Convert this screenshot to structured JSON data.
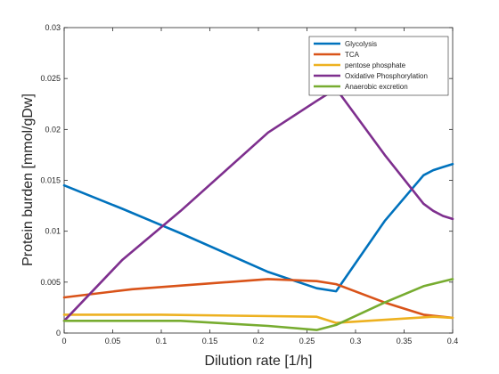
{
  "chart_data": {
    "type": "line",
    "title": "",
    "xlabel": "Dilution rate [1/h]",
    "ylabel": "Protein burden [mmol/gDw]",
    "xlim": [
      0,
      0.4
    ],
    "ylim": [
      0,
      0.03
    ],
    "xticks": [
      0,
      0.05,
      0.1,
      0.15,
      0.2,
      0.25,
      0.3,
      0.35,
      0.4
    ],
    "xtick_labels": [
      "0",
      "0.05",
      "0.1",
      "0.15",
      "0.2",
      "0.25",
      "0.3",
      "0.35",
      "0.4"
    ],
    "yticks": [
      0,
      0.005,
      0.01,
      0.015,
      0.02,
      0.025,
      0.03
    ],
    "ytick_labels": [
      "0",
      "0.005",
      "0.01",
      "0.015",
      "0.02",
      "0.025",
      "0.03"
    ],
    "grid": false,
    "legend_position": "top-right",
    "series": [
      {
        "name": "Glycolysis",
        "color": "#0072BD",
        "x": [
          0,
          0.06,
          0.12,
          0.21,
          0.26,
          0.28,
          0.33,
          0.37,
          0.38,
          0.39,
          0.4
        ],
        "y": [
          0.0145,
          0.0122,
          0.0098,
          0.006,
          0.0044,
          0.0041,
          0.011,
          0.0155,
          0.016,
          0.0163,
          0.0166
        ]
      },
      {
        "name": "TCA",
        "color": "#D95319",
        "x": [
          0,
          0.07,
          0.21,
          0.26,
          0.28,
          0.33,
          0.37,
          0.4
        ],
        "y": [
          0.0035,
          0.0043,
          0.0053,
          0.0051,
          0.0048,
          0.003,
          0.0018,
          0.0015
        ]
      },
      {
        "name": "pentose phosphate",
        "color": "#EDB120",
        "x": [
          0,
          0.1,
          0.26,
          0.28,
          0.38,
          0.4
        ],
        "y": [
          0.0018,
          0.0018,
          0.0016,
          0.001,
          0.0016,
          0.0015
        ]
      },
      {
        "name": "Oxidative Phosphorylation",
        "color": "#7E2F8E",
        "x": [
          0,
          0.06,
          0.12,
          0.21,
          0.26,
          0.28,
          0.33,
          0.37,
          0.38,
          0.39,
          0.4
        ],
        "y": [
          0.0012,
          0.0072,
          0.012,
          0.0197,
          0.0228,
          0.024,
          0.0175,
          0.0127,
          0.012,
          0.0115,
          0.0112
        ]
      },
      {
        "name": "Anaerobic excretion",
        "color": "#77AC30",
        "x": [
          0,
          0.12,
          0.21,
          0.26,
          0.28,
          0.33,
          0.37,
          0.4
        ],
        "y": [
          0.0012,
          0.0012,
          0.0007,
          0.0003,
          0.0008,
          0.003,
          0.0046,
          0.0053
        ]
      }
    ]
  }
}
